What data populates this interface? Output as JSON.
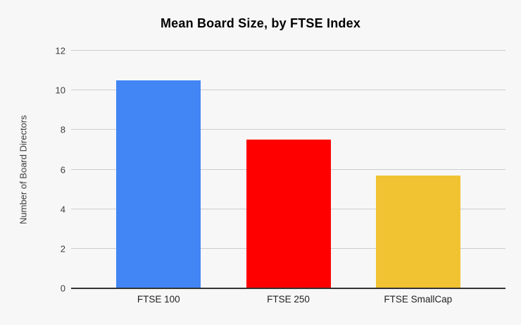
{
  "chart_data": {
    "type": "bar",
    "title": "Mean Board Size, by FTSE Index",
    "ylabel": "Number of Board Directors",
    "xlabel": "",
    "categories": [
      "FTSE 100",
      "FTSE 250",
      "FTSE SmallCap"
    ],
    "values": [
      10.5,
      7.5,
      5.7
    ],
    "bar_colors": [
      "#4285F4",
      "#FF0000",
      "#F1C232"
    ],
    "ylim": [
      0,
      12
    ],
    "yticks": [
      0,
      2,
      4,
      6,
      8,
      10,
      12
    ],
    "grid": "horizontal",
    "legend": "none",
    "colors": {
      "background": "#F7F7F7",
      "gridline": "#CCCCCC",
      "axis_line": "#333333",
      "title_text": "#000000",
      "tick_text": "#3C3C3C"
    }
  }
}
